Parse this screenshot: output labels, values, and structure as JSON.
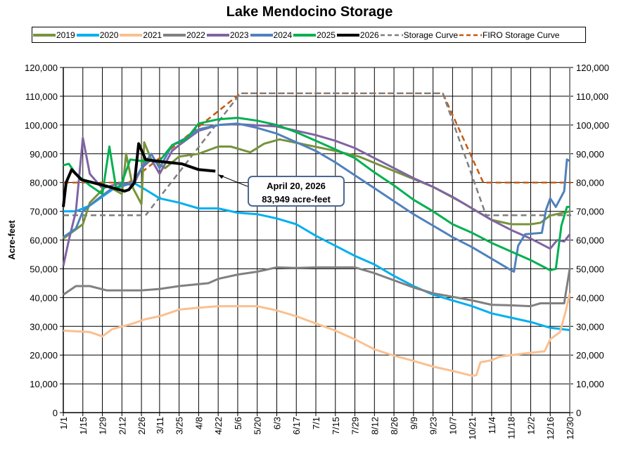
{
  "chart_data": {
    "type": "line",
    "title": "Lake Mendocino Storage",
    "ylabel": "Acre-feet",
    "xlabel": "",
    "ylim": [
      0,
      120000
    ],
    "y_ticks": [
      "0",
      "10,000",
      "20,000",
      "30,000",
      "40,000",
      "50,000",
      "60,000",
      "70,000",
      "80,000",
      "90,000",
      "100,000",
      "110,000",
      "120,000"
    ],
    "x_ticks": [
      "1/1",
      "1/15",
      "1/29",
      "2/12",
      "2/26",
      "3/11",
      "3/25",
      "4/8",
      "4/22",
      "5/6",
      "5/20",
      "6/3",
      "6/17",
      "7/1",
      "7/15",
      "7/29",
      "8/12",
      "8/26",
      "9/9",
      "9/23",
      "10/7",
      "10/21",
      "11/4",
      "11/18",
      "12/2",
      "12/16",
      "12/30"
    ],
    "grid": true,
    "legend_position": "top",
    "annotation": {
      "line1": "April 20, 2026",
      "line2": "83,949 acre-feet",
      "date": "4/20",
      "value": 83949
    },
    "series": [
      {
        "name": "2019",
        "color": "#77933c",
        "dash": false,
        "x": [
          "1/1",
          "1/15",
          "1/20",
          "2/1",
          "2/12",
          "2/15",
          "2/20",
          "2/26",
          "2/28",
          "3/5",
          "3/15",
          "3/25",
          "4/8",
          "4/22",
          "5/1",
          "5/15",
          "5/25",
          "6/5",
          "6/20",
          "7/15",
          "8/1",
          "8/26",
          "9/23",
          "10/14",
          "11/4",
          "11/18",
          "12/2",
          "12/9",
          "12/16",
          "12/30"
        ],
        "y": [
          60500,
          65500,
          73000,
          79000,
          76000,
          90000,
          78000,
          72500,
          94000,
          88000,
          85000,
          89000,
          90000,
          92500,
          92500,
          90500,
          93500,
          95000,
          93500,
          91000,
          89000,
          84000,
          78500,
          73000,
          67000,
          65500,
          65500,
          66000,
          68500,
          70000
        ]
      },
      {
        "name": "2020",
        "color": "#00b0f0",
        "dash": false,
        "x": [
          "1/1",
          "1/10",
          "1/20",
          "2/5",
          "2/20",
          "3/1",
          "3/11",
          "3/25",
          "4/8",
          "4/22",
          "5/6",
          "5/20",
          "6/3",
          "6/17",
          "7/1",
          "7/15",
          "7/29",
          "8/12",
          "8/26",
          "9/9",
          "9/23",
          "10/7",
          "10/21",
          "11/4",
          "11/18",
          "12/2",
          "12/16",
          "12/30"
        ],
        "y": [
          70000,
          70000,
          72000,
          77500,
          80000,
          77500,
          74500,
          73000,
          71000,
          71000,
          69500,
          69000,
          67500,
          65500,
          61500,
          58000,
          54500,
          51500,
          47500,
          44000,
          41000,
          39000,
          37000,
          34500,
          33000,
          31500,
          29500,
          28700
        ]
      },
      {
        "name": "2021",
        "color": "#fac090",
        "dash": false,
        "x": [
          "1/1",
          "1/20",
          "1/29",
          "2/5",
          "2/20",
          "3/1",
          "3/11",
          "3/25",
          "4/8",
          "4/22",
          "5/20",
          "6/3",
          "6/17",
          "7/1",
          "7/15",
          "7/29",
          "8/12",
          "8/26",
          "9/9",
          "9/23",
          "10/7",
          "10/21",
          "10/24",
          "10/27",
          "11/4",
          "11/10",
          "11/18",
          "12/2",
          "12/12",
          "12/16",
          "12/23",
          "12/27",
          "12/30"
        ],
        "y": [
          28500,
          28000,
          26500,
          29000,
          31000,
          32500,
          33500,
          35800,
          36500,
          37000,
          37000,
          35500,
          33500,
          31000,
          28500,
          25500,
          22000,
          19800,
          18000,
          16000,
          14500,
          12800,
          13000,
          17500,
          18200,
          19500,
          20000,
          20800,
          21300,
          25500,
          28000,
          35000,
          41500
        ]
      },
      {
        "name": "2022",
        "color": "#808080",
        "dash": false,
        "x": [
          "1/1",
          "1/10",
          "1/20",
          "2/1",
          "2/26",
          "3/11",
          "3/25",
          "4/15",
          "4/22",
          "5/6",
          "5/20",
          "6/3",
          "6/17",
          "7/1",
          "7/29",
          "8/12",
          "8/26",
          "9/9",
          "9/23",
          "10/21",
          "11/4",
          "11/18",
          "12/2",
          "12/9",
          "12/26",
          "12/27",
          "12/30"
        ],
        "y": [
          41000,
          44000,
          44000,
          42500,
          42500,
          43000,
          44000,
          45000,
          46500,
          48000,
          49000,
          50500,
          50300,
          50500,
          50500,
          48500,
          46000,
          43500,
          41500,
          39000,
          37500,
          37300,
          37000,
          38000,
          38000,
          41000,
          50000
        ]
      },
      {
        "name": "2023",
        "color": "#8064a2",
        "dash": false,
        "x": [
          "1/1",
          "1/5",
          "1/10",
          "1/15",
          "1/20",
          "1/29",
          "2/12",
          "2/20",
          "2/26",
          "3/5",
          "3/11",
          "3/20",
          "3/25",
          "4/8",
          "4/22",
          "5/6",
          "6/3",
          "6/17",
          "7/1",
          "7/15",
          "7/29",
          "8/12",
          "8/26",
          "9/9",
          "9/23",
          "10/7",
          "10/21",
          "11/4",
          "11/18",
          "12/2",
          "12/16",
          "12/21",
          "12/26",
          "12/30"
        ],
        "y": [
          51000,
          60000,
          70000,
          95500,
          83000,
          78000,
          80000,
          79000,
          85000,
          88000,
          83000,
          91000,
          93000,
          98000,
          100000,
          100300,
          99500,
          98000,
          96500,
          94500,
          92000,
          88500,
          85000,
          81500,
          78500,
          75000,
          71000,
          67000,
          63500,
          60500,
          57000,
          60000,
          59500,
          62000
        ]
      },
      {
        "name": "2024",
        "color": "#4f81bd",
        "dash": false,
        "x": [
          "1/1",
          "1/10",
          "1/15",
          "1/25",
          "2/5",
          "2/20",
          "2/26",
          "3/5",
          "3/11",
          "3/20",
          "4/1",
          "4/8",
          "4/22",
          "5/6",
          "5/20",
          "6/3",
          "6/17",
          "7/1",
          "7/15",
          "7/29",
          "8/12",
          "8/26",
          "9/9",
          "9/23",
          "10/7",
          "10/21",
          "11/4",
          "11/18",
          "11/20",
          "11/23",
          "11/28",
          "12/10",
          "12/13",
          "12/16",
          "12/20",
          "12/26",
          "12/28",
          "12/30"
        ],
        "y": [
          61000,
          64000,
          70000,
          74000,
          78000,
          80000,
          85000,
          90000,
          85000,
          93000,
          96000,
          98500,
          100000,
          100500,
          99000,
          97000,
          94000,
          91000,
          87000,
          82500,
          78000,
          73500,
          69000,
          65000,
          61000,
          57500,
          53500,
          49500,
          49000,
          58000,
          62000,
          62500,
          70500,
          74500,
          71500,
          77000,
          88000,
          87500
        ]
      },
      {
        "name": "2025",
        "color": "#00b050",
        "dash": false,
        "x": [
          "1/1",
          "1/5",
          "1/10",
          "1/20",
          "1/29",
          "2/3",
          "2/8",
          "2/12",
          "2/18",
          "2/26",
          "3/11",
          "3/20",
          "3/30",
          "4/8",
          "4/22",
          "5/6",
          "5/20",
          "6/3",
          "6/17",
          "7/1",
          "7/15",
          "7/29",
          "8/12",
          "8/26",
          "9/9",
          "9/23",
          "10/7",
          "10/21",
          "11/4",
          "11/18",
          "12/2",
          "12/16",
          "12/20",
          "12/24",
          "12/28",
          "12/30"
        ],
        "y": [
          86000,
          86500,
          83000,
          79000,
          76000,
          92500,
          77500,
          80000,
          88000,
          87500,
          87500,
          93000,
          95000,
          100500,
          102000,
          102500,
          101500,
          100000,
          97500,
          94500,
          91500,
          88500,
          83500,
          79000,
          74000,
          70000,
          65500,
          62500,
          59000,
          56000,
          53000,
          49500,
          50000,
          65000,
          71500,
          71500
        ]
      },
      {
        "name": "2026",
        "color": "#000000",
        "dash": false,
        "x": [
          "1/1",
          "1/3",
          "1/7",
          "1/14",
          "1/30",
          "2/14",
          "2/17",
          "2/21",
          "2/24",
          "3/1",
          "3/8",
          "3/27",
          "4/8",
          "4/20"
        ],
        "y": [
          71500,
          80000,
          84500,
          81000,
          79000,
          77000,
          77500,
          80000,
          93500,
          88000,
          87500,
          86500,
          84500,
          83949
        ]
      },
      {
        "name": "Storage Curve",
        "color": "#7f7f7f",
        "dash": true,
        "x": [
          "1/1",
          "3/1",
          "5/8",
          "9/30",
          "10/31",
          "12/31"
        ],
        "y": [
          68600,
          68600,
          111000,
          111000,
          68600,
          68600
        ]
      },
      {
        "name": "FIRO Storage Curve",
        "color": "#c55a11",
        "dash": true,
        "x": [
          "1/1",
          "2/17",
          "5/8",
          "9/30",
          "10/29",
          "12/31"
        ],
        "y": [
          80000,
          80000,
          111000,
          111000,
          80000,
          80000
        ]
      }
    ]
  }
}
